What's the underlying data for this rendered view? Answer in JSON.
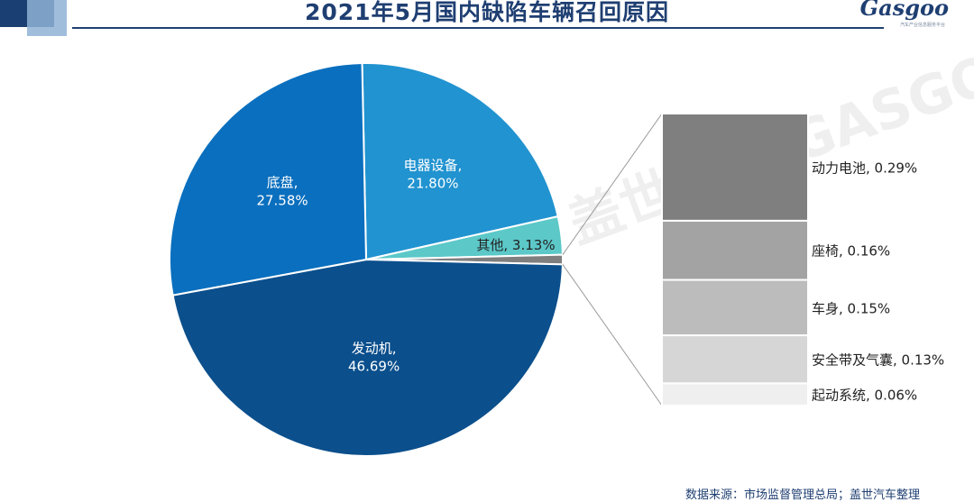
{
  "header": {
    "title": "2021年5月国内缺陷车辆召回原因",
    "logo_text": "Gasgoo",
    "logo_sub": "汽车产业信息服务平台"
  },
  "watermark": "盖世汽车 GASGOO",
  "chart_data": {
    "type": "pie",
    "title": "2021年5月国内缺陷车辆召回原因",
    "unit": "%",
    "main": [
      {
        "name": "电器设备",
        "value": 21.8,
        "label": "电器设备,\n21.80%",
        "color": "#2193d0"
      },
      {
        "name": "其他",
        "value": 3.13,
        "label": "其他, 3.13%",
        "color": "#5cc8c8"
      },
      {
        "name": "其他细分",
        "value": 0.79,
        "label": "",
        "color": "#7f7f7f"
      },
      {
        "name": "发动机",
        "value": 46.69,
        "label": "发动机,\n46.69%",
        "color": "#0b4f8c"
      },
      {
        "name": "底盘",
        "value": 27.58,
        "label": "底盘,\n27.58%",
        "color": "#0a6fbe"
      }
    ],
    "breakdown": [
      {
        "name": "动力电池",
        "value": 0.29,
        "label": "动力电池, 0.29%",
        "color": "#7f7f7f"
      },
      {
        "name": "座椅",
        "value": 0.16,
        "label": "座椅, 0.16%",
        "color": "#a3a3a3"
      },
      {
        "name": "车身",
        "value": 0.15,
        "label": "车身, 0.15%",
        "color": "#bcbcbc"
      },
      {
        "name": "安全带及气囊",
        "value": 0.13,
        "label": "安全带及气囊, 0.13%",
        "color": "#d6d6d6"
      },
      {
        "name": "起动系统",
        "value": 0.06,
        "label": "起动系统, 0.06%",
        "color": "#efefef"
      }
    ]
  },
  "footer": {
    "source": "数据来源：市场监督管理总局；盖世汽车整理"
  }
}
